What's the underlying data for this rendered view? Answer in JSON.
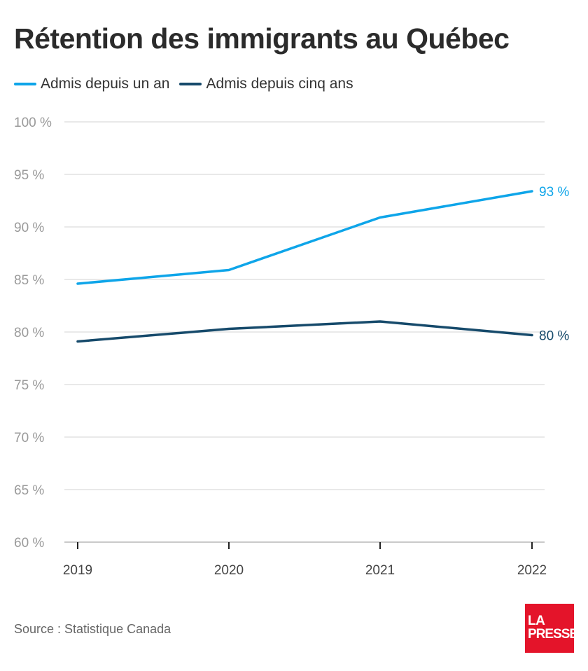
{
  "header": {
    "title": "Rétention des immigrants au Québec"
  },
  "footer": {
    "source": "Source : Statistique Canada"
  },
  "logo": {
    "line1": "LA",
    "line2": "PRESSE",
    "color": "#e4142a"
  },
  "chart_data": {
    "type": "line",
    "title": "Rétention des immigrants au Québec",
    "xlabel": "",
    "ylabel": "",
    "categories": [
      "2019",
      "2020",
      "2021",
      "2022"
    ],
    "y_ticks": [
      "60 %",
      "65 %",
      "70 %",
      "75 %",
      "80 %",
      "85 %",
      "90 %",
      "95 %",
      "100 %"
    ],
    "y_tick_values": [
      60,
      65,
      70,
      75,
      80,
      85,
      90,
      95,
      100
    ],
    "ylim": [
      60,
      100
    ],
    "grid": true,
    "legend": "top-left",
    "series": [
      {
        "name": "Admis depuis un an",
        "color": "#0ea5e9",
        "values": [
          84.6,
          85.9,
          90.9,
          93.4
        ],
        "end_label": "93 %"
      },
      {
        "name": "Admis depuis cinq ans",
        "color": "#164a6b",
        "values": [
          79.1,
          80.3,
          81.0,
          79.7
        ],
        "end_label": "80 %"
      }
    ]
  }
}
